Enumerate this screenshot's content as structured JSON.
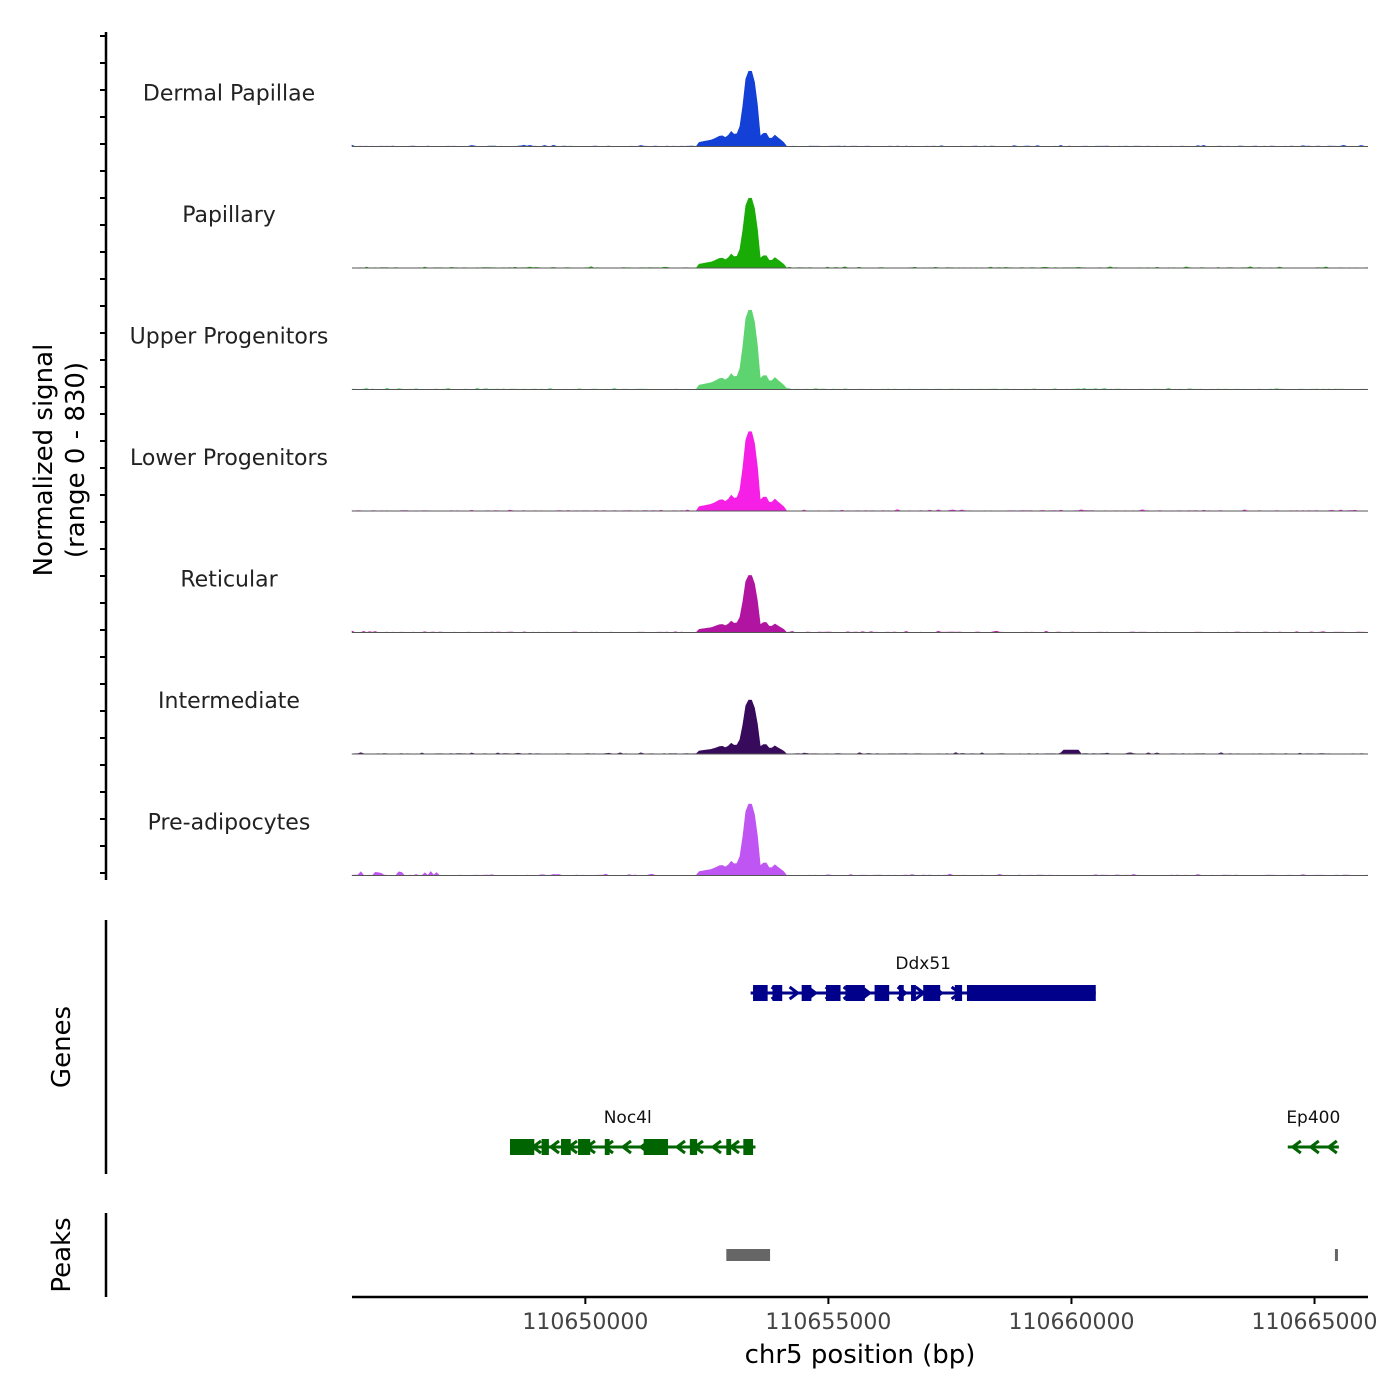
{
  "chart_data": {
    "type": "area",
    "title": "",
    "ylabel_line1": "Normalized signal",
    "ylabel_line2": "(range 0 - 830)",
    "xlabel": "chr5 position (bp)",
    "xlim": [
      110645200,
      110666100
    ],
    "ylim": [
      0,
      830
    ],
    "x_ticks": [
      110650000,
      110655000,
      110660000,
      110665000
    ],
    "x_tick_labels": [
      "110650000",
      "110655000",
      "110660000",
      "110665000"
    ],
    "base_profile": [
      {
        "x": 110652300,
        "y": 40
      },
      {
        "x": 110652600,
        "y": 70
      },
      {
        "x": 110652800,
        "y": 120
      },
      {
        "x": 110652900,
        "y": 90
      },
      {
        "x": 110653000,
        "y": 160
      },
      {
        "x": 110653100,
        "y": 110
      },
      {
        "x": 110653200,
        "y": 240
      },
      {
        "x": 110653300,
        "y": 720
      },
      {
        "x": 110653380,
        "y": 830
      },
      {
        "x": 110653450,
        "y": 780
      },
      {
        "x": 110653520,
        "y": 560
      },
      {
        "x": 110653600,
        "y": 110
      },
      {
        "x": 110653700,
        "y": 160
      },
      {
        "x": 110653800,
        "y": 70
      },
      {
        "x": 110653900,
        "y": 120
      },
      {
        "x": 110654100,
        "y": 35
      }
    ],
    "series": [
      {
        "name": "Dermal Papillae",
        "color": "#1340d6",
        "scale": 0.95
      },
      {
        "name": "Papillary",
        "color": "#1aac06",
        "scale": 0.88
      },
      {
        "name": "Upper Progenitors",
        "color": "#5ed470",
        "scale": 1.0
      },
      {
        "name": "Lower Progenitors",
        "color": "#f51fe6",
        "scale": 1.0
      },
      {
        "name": "Reticular",
        "color": "#b014a0",
        "scale": 0.72
      },
      {
        "name": "Intermediate",
        "color": "#380a5c",
        "scale": 0.68
      },
      {
        "name": "Pre-adipocytes",
        "color": "#bf55f2",
        "scale": 0.9
      }
    ],
    "genes_label": "Genes",
    "genes": [
      {
        "name": "Ddx51",
        "strand": "+",
        "color": "#00008b",
        "row": 0,
        "start": 110653400,
        "end": 110660500,
        "exons": [
          [
            110653450,
            110653750
          ],
          [
            110653850,
            110654050
          ],
          [
            110654450,
            110654650
          ],
          [
            110654950,
            110655250
          ],
          [
            110655350,
            110655750
          ],
          [
            110655950,
            110656250
          ],
          [
            110656450,
            110656550
          ],
          [
            110656700,
            110656800
          ],
          [
            110656950,
            110657300
          ],
          [
            110657600,
            110657750
          ],
          [
            110657850,
            110660500
          ]
        ]
      },
      {
        "name": "Noc4l",
        "strand": "-",
        "color": "#006400",
        "row": 1,
        "start": 110648450,
        "end": 110653500,
        "exons": [
          [
            110648450,
            110648950
          ],
          [
            110649100,
            110649250
          ],
          [
            110649500,
            110649700
          ],
          [
            110649850,
            110650100
          ],
          [
            110650400,
            110650500
          ],
          [
            110651200,
            110651700
          ],
          [
            110652150,
            110652300
          ],
          [
            110652900,
            110653000
          ],
          [
            110653250,
            110653450
          ]
        ]
      },
      {
        "name": "Ep400",
        "strand": "-",
        "color": "#006400",
        "row": 1,
        "start": 110664450,
        "end": 110665500,
        "exons": []
      }
    ],
    "peaks_label": "Peaks",
    "peaks": [
      [
        110652900,
        110653800
      ],
      [
        110665420,
        110665480
      ]
    ]
  }
}
